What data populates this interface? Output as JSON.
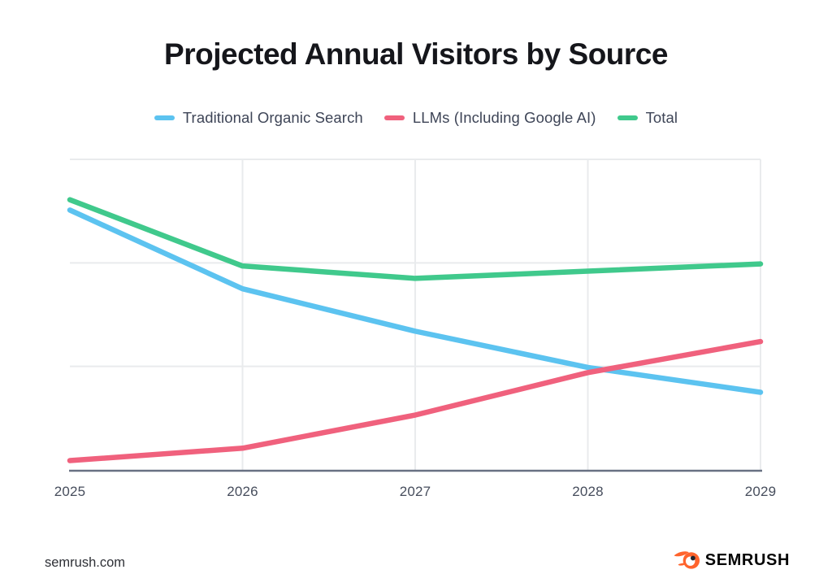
{
  "title": "Projected Annual Visitors by Source",
  "chart_data": {
    "type": "line",
    "title": "Projected Annual Visitors by Source",
    "categories": [
      "2025",
      "2026",
      "2027",
      "2028",
      "2029"
    ],
    "series": [
      {
        "name": "Traditional Organic Search",
        "color": "#5CC3F0",
        "values": [
          2.51,
          1.75,
          1.34,
          0.99,
          0.75
        ]
      },
      {
        "name": "LLMs (Including Google AI)",
        "color": "#F0617D",
        "values": [
          0.09,
          0.21,
          0.53,
          0.94,
          1.24
        ]
      },
      {
        "name": "Total",
        "color": "#40C98C",
        "values": [
          2.61,
          1.97,
          1.85,
          1.92,
          1.99
        ]
      }
    ],
    "xlabel": "",
    "ylabel": "",
    "ylim": [
      0,
      3
    ],
    "y_axis_tick_labels": "none (unlabeled axis; values estimated in gridline units, 1 unit per horizontal gridline)",
    "gridlines": {
      "horizontal_at_values": [
        1,
        2,
        3
      ],
      "vertical_at_categories": [
        "2026",
        "2027",
        "2028",
        "2029"
      ]
    },
    "legend_position": "top"
  },
  "footer": {
    "site": "semrush.com",
    "brand": "SEMRUSH"
  },
  "colors": {
    "accent_blue": "#5CC3F0",
    "accent_pink": "#F0617D",
    "accent_green": "#40C98C",
    "brand_orange": "#FF642D",
    "grid": "#E9EBED",
    "axis": "#68718364",
    "axis_line": "#687183",
    "title_text": "#15161B",
    "legend_text": "#3E4557",
    "tick_text": "#464D5C"
  }
}
